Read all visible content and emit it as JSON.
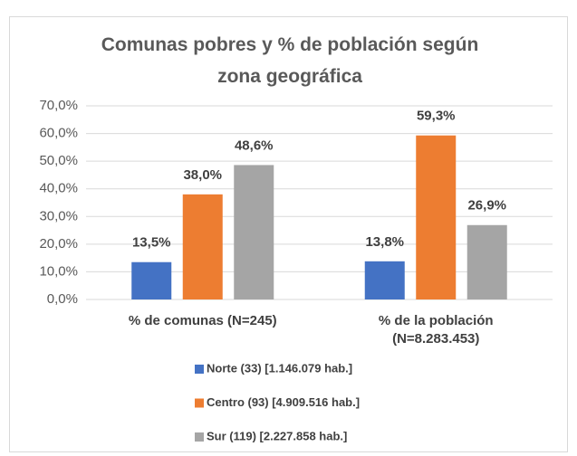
{
  "chart_data": {
    "type": "bar",
    "title": "Comunas pobres y % de población según zona geográfica",
    "categories": [
      "% de comunas (N=245)",
      "% de la población (N=8.283.453)"
    ],
    "series": [
      {
        "name": "Norte (33) [1.146.079 hab.]",
        "color": "#4472c4",
        "values": [
          13.5,
          13.8
        ],
        "value_labels": [
          "13,5%",
          "13,8%"
        ]
      },
      {
        "name": "Centro (93) [4.909.516 hab.]",
        "color": "#ed7d31",
        "values": [
          38.0,
          59.3
        ],
        "value_labels": [
          "38,0%",
          "59,3%"
        ]
      },
      {
        "name": "Sur (119) [2.227.858 hab.]",
        "color": "#a5a5a5",
        "values": [
          48.6,
          26.9
        ],
        "value_labels": [
          "48,6%",
          "26,9%"
        ]
      }
    ],
    "ylim": [
      0,
      70
    ],
    "yticks": [
      {
        "value": 0,
        "label": "0,0%"
      },
      {
        "value": 10,
        "label": "10,0%"
      },
      {
        "value": 20,
        "label": "20,0%"
      },
      {
        "value": 30,
        "label": "30,0%"
      },
      {
        "value": 40,
        "label": "40,0%"
      },
      {
        "value": 50,
        "label": "50,0%"
      },
      {
        "value": 60,
        "label": "60,0%"
      },
      {
        "value": 70,
        "label": "70,0%"
      }
    ],
    "grid": true,
    "legend": "bottom"
  }
}
